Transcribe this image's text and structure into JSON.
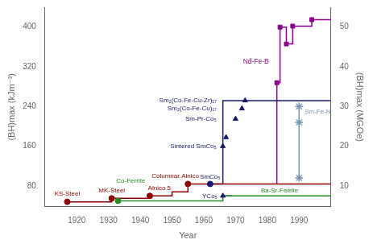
{
  "chart_data": {
    "type": "line",
    "xlabel": "Year",
    "ylabel": "(BH)max (kJm⁻³)",
    "y2label": "(BH)max (MGOe)",
    "xlim": [
      1910,
      2000
    ],
    "ylim": [
      38,
      440
    ],
    "y2lim": [
      4.75,
      55
    ],
    "xticks": [
      1920,
      1930,
      1940,
      1950,
      1960,
      1970,
      1980,
      1990
    ],
    "yticks": [
      80,
      160,
      240,
      320,
      400
    ],
    "y2ticks": [
      10,
      20,
      30,
      40,
      50
    ],
    "grid": false,
    "series": [
      {
        "type": "line",
        "color": "#8B0000",
        "x": [
          1917,
          1931,
          1931,
          1943,
          1943,
          1950,
          1950,
          1955,
          1955,
          2000
        ],
        "values": [
          48,
          48,
          55,
          55,
          60,
          60,
          68,
          68,
          84,
          84
        ]
      },
      {
        "type": "scatter",
        "marker": "circle",
        "color": "#8B0000",
        "x": [
          1917,
          1931,
          1943,
          1955
        ],
        "values": [
          48,
          55,
          60,
          84
        ]
      },
      {
        "type": "line",
        "color": "#228B22",
        "x": [
          1933,
          1966,
          1966,
          2000
        ],
        "values": [
          50,
          50,
          60,
          60
        ]
      },
      {
        "type": "scatter",
        "marker": "circle",
        "color": "#228B22",
        "x": [
          1933
        ],
        "values": [
          50
        ]
      },
      {
        "type": "line",
        "color": "#191970",
        "x": [
          1962,
          1966,
          1966,
          2000
        ],
        "values": [
          84,
          84,
          252,
          252
        ]
      },
      {
        "type": "line",
        "color": "#191970",
        "x": [
          1966,
          1969
        ],
        "values": [
          60,
          60
        ]
      },
      {
        "type": "scatter",
        "marker": "triangle",
        "color": "#191970",
        "x": [
          1966,
          1967,
          1970,
          1972,
          1973,
          1966
        ],
        "values": [
          160,
          178,
          215,
          236,
          252,
          60
        ]
      },
      {
        "type": "scatter",
        "marker": "circle",
        "color": "#191970",
        "x": [
          1962
        ],
        "values": [
          84
        ]
      },
      {
        "type": "line",
        "color": "#8B008B",
        "x": [
          1983,
          1983,
          1984,
          1984,
          1986,
          1986,
          1988,
          1988,
          1994,
          1994,
          2000
        ],
        "values": [
          84,
          288,
          288,
          400,
          400,
          366,
          366,
          402,
          402,
          415,
          415
        ]
      },
      {
        "type": "scatter",
        "marker": "square",
        "color": "#8B008B",
        "x": [
          1983,
          1984,
          1986,
          1988,
          1994
        ],
        "values": [
          288,
          400,
          366,
          402,
          415
        ]
      },
      {
        "type": "line",
        "color": "#7B96B8",
        "x": [
          1990,
          1990
        ],
        "values": [
          96,
          240
        ]
      },
      {
        "type": "scatter",
        "marker": "star",
        "color": "#7B96B8",
        "x": [
          1990,
          1990,
          1990
        ],
        "values": [
          96,
          208,
          240
        ]
      }
    ],
    "annotations": [
      {
        "text": "KS-Steel",
        "x": 1917,
        "y": 44,
        "color": "#8B0000"
      },
      {
        "text": "MK-Steel",
        "x": 1931,
        "y": 51,
        "color": "#8B0000"
      },
      {
        "text": "Alnico 5",
        "x": 1946,
        "y": 56,
        "color": "#8B0000"
      },
      {
        "text": "Columnar Alnico",
        "x": 1950,
        "y": 76,
        "color": "#8B0000"
      },
      {
        "text": "Co-Ferrite",
        "x": 1937,
        "y": 46,
        "color": "#228B22"
      },
      {
        "text": "Ba-Sr-Ferrite",
        "x": 1978,
        "y": 63,
        "color": "#228B22"
      },
      {
        "text": "SmCo₅",
        "x": 1963,
        "y": 87,
        "color": "#191970"
      },
      {
        "text": "YCo₅",
        "x": 1963,
        "y": 58,
        "color": "#191970"
      },
      {
        "text": "Sintered SmCo₅",
        "x": 1964,
        "y": 160,
        "color": "#191970"
      },
      {
        "text": "Sm-Pr-Co₅",
        "x": 1964,
        "y": 215,
        "color": "#191970"
      },
      {
        "text": "Sm₂(Co-Fe-Cu)₁₇",
        "x": 1964,
        "y": 236,
        "color": "#191970"
      },
      {
        "text": "Sm₂(Co-Fe-Cu-Zr)₁₇",
        "x": 1964,
        "y": 252,
        "color": "#191970"
      },
      {
        "text": "Nd-Fe-B",
        "x": 1981,
        "y": 330,
        "color": "#8B008B"
      },
      {
        "text": "Sm-Fe-N",
        "x": 1991,
        "y": 230,
        "color": "#7B96B8"
      }
    ]
  }
}
